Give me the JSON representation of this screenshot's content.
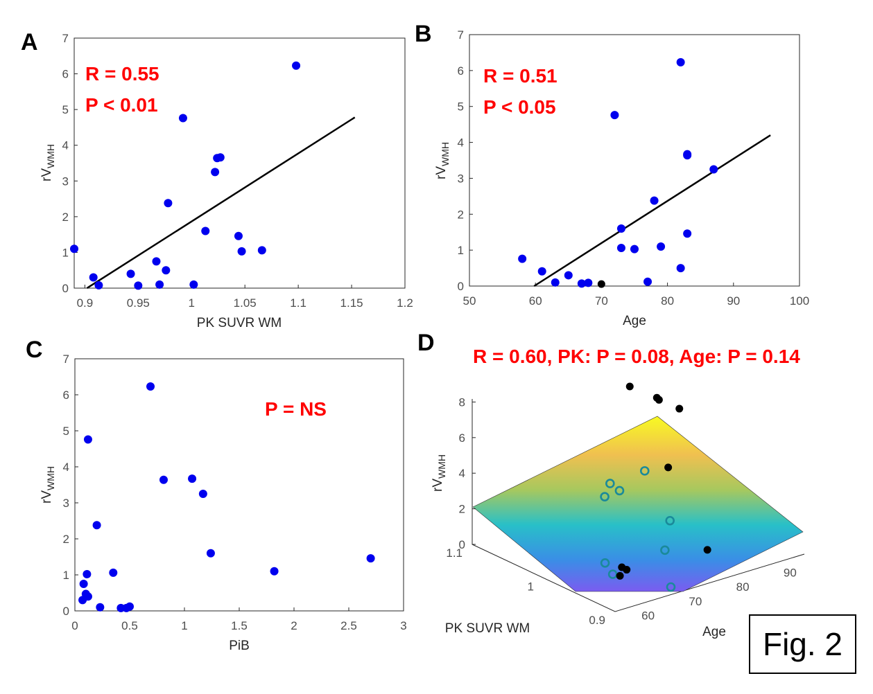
{
  "figure_label": "Fig. 2",
  "colors": {
    "points": "#0000ee",
    "fit_line": "#000000",
    "stats": "#ff0000",
    "points_3d_above": "#000000",
    "points_3d_below": "#1a8a9a"
  },
  "chart_data": [
    {
      "panel": "A",
      "type": "scatter",
      "xlabel": "PK SUVR WM",
      "ylabel": "rV",
      "ylabel_sub": "WMH",
      "xlim": [
        0.89,
        1.2
      ],
      "ylim": [
        0,
        7
      ],
      "xticks": [
        "0.9",
        "0.95",
        "1",
        "1.05",
        "1.1",
        "1.15",
        "1.2"
      ],
      "yticks": [
        "0",
        "1",
        "2",
        "3",
        "4",
        "5",
        "6",
        "7"
      ],
      "stats": [
        "R = 0.55",
        "P < 0.01"
      ],
      "x": [
        0.89,
        0.908,
        0.913,
        0.943,
        0.95,
        0.967,
        0.97,
        0.976,
        0.978,
        0.992,
        1.002,
        1.013,
        1.022,
        1.024,
        1.027,
        1.044,
        1.047,
        1.066,
        1.098
      ],
      "y": [
        1.1,
        0.3,
        0.08,
        0.4,
        0.07,
        0.75,
        0.1,
        0.5,
        2.38,
        4.76,
        0.1,
        1.6,
        3.25,
        3.64,
        3.66,
        1.46,
        1.03,
        1.06,
        6.23
      ],
      "fit": {
        "x": [
          0.902,
          1.153
        ],
        "y": [
          0.0,
          4.78
        ]
      }
    },
    {
      "panel": "B",
      "type": "scatter",
      "xlabel": "Age",
      "ylabel": "rV",
      "ylabel_sub": "WMH",
      "xlim": [
        50,
        100
      ],
      "ylim": [
        0,
        7
      ],
      "xticks": [
        "50",
        "60",
        "70",
        "80",
        "90",
        "100"
      ],
      "yticks": [
        "0",
        "1",
        "2",
        "3",
        "4",
        "5",
        "6",
        "7"
      ],
      "stats": [
        "R = 0.51",
        "P < 0.05"
      ],
      "x": [
        58,
        61,
        63,
        65,
        67,
        68,
        72,
        73,
        73,
        75,
        77,
        78,
        79,
        82,
        82,
        83,
        83,
        83,
        87
      ],
      "y": [
        0.76,
        0.41,
        0.1,
        0.3,
        0.07,
        0.09,
        4.76,
        1.6,
        1.06,
        1.03,
        0.12,
        2.38,
        1.1,
        0.5,
        6.23,
        3.64,
        3.67,
        1.46,
        3.25
      ],
      "fit": {
        "x": [
          59.8,
          95.6
        ],
        "y": [
          0.0,
          4.2
        ]
      }
    },
    {
      "panel": "C",
      "type": "scatter",
      "xlabel": "PiB",
      "ylabel": "rV",
      "ylabel_sub": "WMH",
      "xlim": [
        0,
        3
      ],
      "ylim": [
        0,
        7
      ],
      "xticks": [
        "0",
        "0.5",
        "1",
        "1.5",
        "2",
        "2.5",
        "3"
      ],
      "yticks": [
        "0",
        "1",
        "2",
        "3",
        "4",
        "5",
        "6",
        "7"
      ],
      "stats": [
        "P = NS"
      ],
      "x": [
        0.07,
        0.08,
        0.1,
        0.11,
        0.12,
        0.12,
        0.2,
        0.23,
        0.35,
        0.42,
        0.47,
        0.5,
        0.69,
        0.81,
        1.07,
        1.17,
        1.24,
        1.82,
        2.7
      ],
      "y": [
        0.3,
        0.75,
        0.47,
        1.02,
        4.76,
        0.4,
        2.38,
        0.1,
        1.06,
        0.08,
        0.08,
        0.12,
        6.23,
        3.64,
        3.67,
        3.25,
        1.6,
        1.1,
        1.46
      ]
    },
    {
      "panel": "D",
      "type": "scatter",
      "title": "R = 0.60, PK: P = 0.08, Age: P = 0.14",
      "xlabel": "PK SUVR WM",
      "ylabel": "rV",
      "ylabel_sub": "WMH",
      "zlabel": "Age",
      "pk_ticks": [
        "1.1",
        "1",
        "0.9"
      ],
      "age_ticks": [
        "60",
        "70",
        "80",
        "90"
      ],
      "z_ticks": [
        "0",
        "2",
        "4",
        "6",
        "8"
      ],
      "points_above_plane": [
        {
          "pk": 1.098,
          "age": 82,
          "v": 6.23
        },
        {
          "pk": 0.978,
          "age": 78,
          "v": 2.38
        },
        {
          "pk": 1.024,
          "age": 83,
          "v": 3.64
        },
        {
          "pk": 1.027,
          "age": 83,
          "v": 3.67
        },
        {
          "pk": 1.022,
          "age": 87,
          "v": 3.25
        },
        {
          "pk": 0.992,
          "age": 72,
          "v": 4.76
        },
        {
          "pk": 0.89,
          "age": 73,
          "v": 1.1
        },
        {
          "pk": 0.913,
          "age": 58,
          "v": 0.76
        },
        {
          "pk": 0.95,
          "age": 65,
          "v": 0.3
        },
        {
          "pk": 0.97,
          "age": 67,
          "v": 0.1
        }
      ],
      "points_below_plane": [
        {
          "pk": 1.013,
          "age": 73,
          "v": 1.6
        },
        {
          "pk": 1.044,
          "age": 83,
          "v": 1.46
        },
        {
          "pk": 1.047,
          "age": 75,
          "v": 1.03
        },
        {
          "pk": 1.066,
          "age": 79,
          "v": 1.06
        },
        {
          "pk": 1.002,
          "age": 82,
          "v": 0.5
        },
        {
          "pk": 0.976,
          "age": 77,
          "v": 0.12
        },
        {
          "pk": 0.967,
          "age": 63,
          "v": 0.41
        },
        {
          "pk": 0.943,
          "age": 61,
          "v": 0.4
        },
        {
          "pk": 0.908,
          "age": 68,
          "v": 0.09
        }
      ]
    }
  ]
}
